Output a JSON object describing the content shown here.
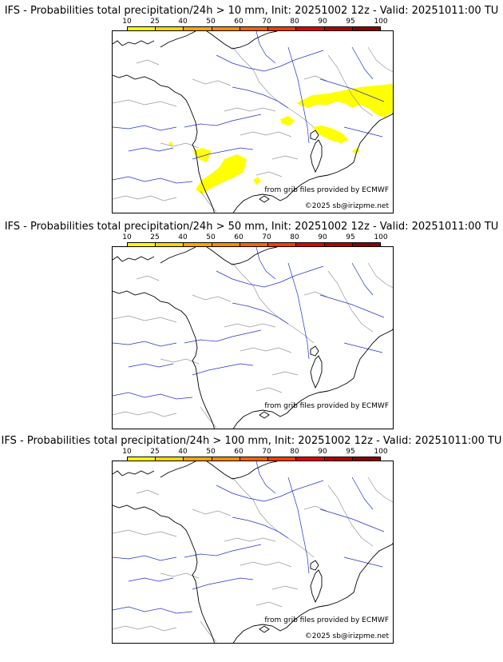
{
  "scale": {
    "labels": [
      "10",
      "25",
      "40",
      "50",
      "60",
      "70",
      "80",
      "90",
      "95",
      "100"
    ],
    "colors": [
      "#ffff00",
      "#ffd700",
      "#ffa500",
      "#ff8c00",
      "#ff6400",
      "#ff3c00",
      "#e00000",
      "#b40000",
      "#8b0000",
      "#550000"
    ]
  },
  "panels": [
    {
      "title": "IFS - Probabilities total precipitation/24h > 10 mm, Init: 20251002 12z - Valid: 20251011:00 TU",
      "rain": true,
      "credit_grib": "from grib files provided by ECMWF",
      "credit_copy": "©2025 sb@irizpme.net"
    },
    {
      "title": "IFS - Probabilities total precipitation/24h > 50 mm, Init: 20251002 12z - Valid: 20251011:00 TU",
      "rain": false,
      "credit_grib": "from grib files provided by ECMWF",
      "credit_copy": ""
    },
    {
      "title": "IFS - Probabilities total precipitation/24h > 100 mm, Init: 20251002 12z - Valid: 20251011:00 TU",
      "rain": false,
      "credit_grib": "from grib files provided by ECMWF",
      "credit_copy": "©2025 sb@irizpme.net"
    }
  ],
  "colors": {
    "coast": "#000000",
    "rivers": "#2233cc",
    "borders": "#999999",
    "rain": "#ffff00"
  }
}
